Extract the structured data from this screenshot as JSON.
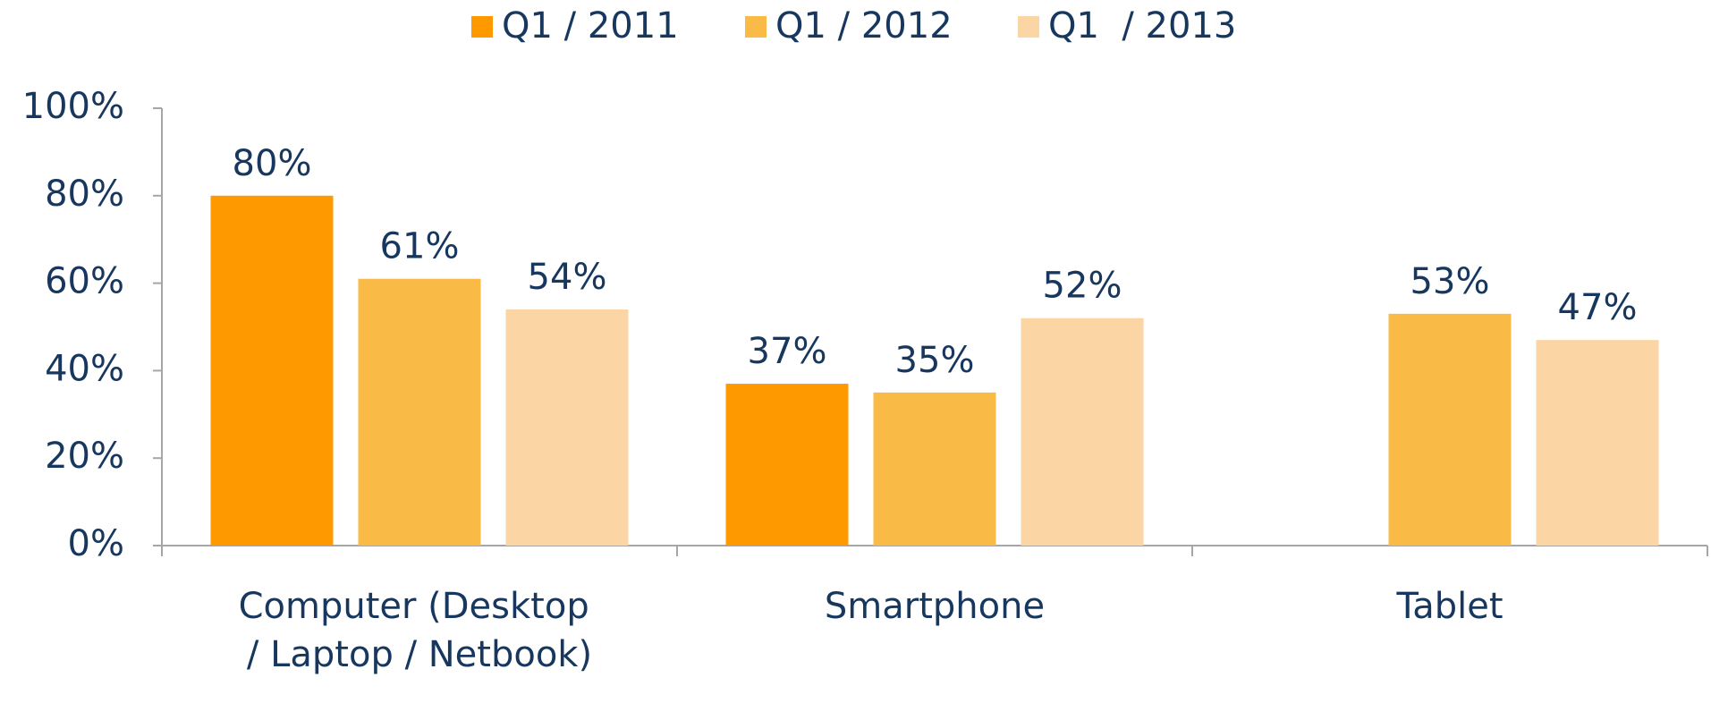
{
  "chart_data": {
    "type": "bar",
    "categories": [
      "Computer (Desktop / Laptop / Netbook)",
      "Smartphone",
      "Tablet"
    ],
    "series": [
      {
        "name": "Q1 / 2011",
        "color": "#ff9900",
        "values": [
          80,
          37,
          null
        ],
        "value_labels": [
          "80%",
          "37%",
          null
        ]
      },
      {
        "name": "Q1 / 2012",
        "color": "#f9bb45",
        "values": [
          61,
          35,
          53
        ],
        "value_labels": [
          "61%",
          "35%",
          "53%"
        ]
      },
      {
        "name": "Q1  / 2013",
        "color": "#fcd5a4",
        "values": [
          54,
          52,
          47
        ],
        "value_labels": [
          "54%",
          "52%",
          "47%"
        ]
      }
    ],
    "ylim": [
      0,
      100
    ],
    "yticks": [
      {
        "value": 0,
        "label": "0%"
      },
      {
        "value": 20,
        "label": "20%"
      },
      {
        "value": 40,
        "label": "40%"
      },
      {
        "value": 60,
        "label": "60%"
      },
      {
        "value": 80,
        "label": "80%"
      },
      {
        "value": 100,
        "label": "100%"
      }
    ],
    "legend": "top",
    "grid": false
  }
}
